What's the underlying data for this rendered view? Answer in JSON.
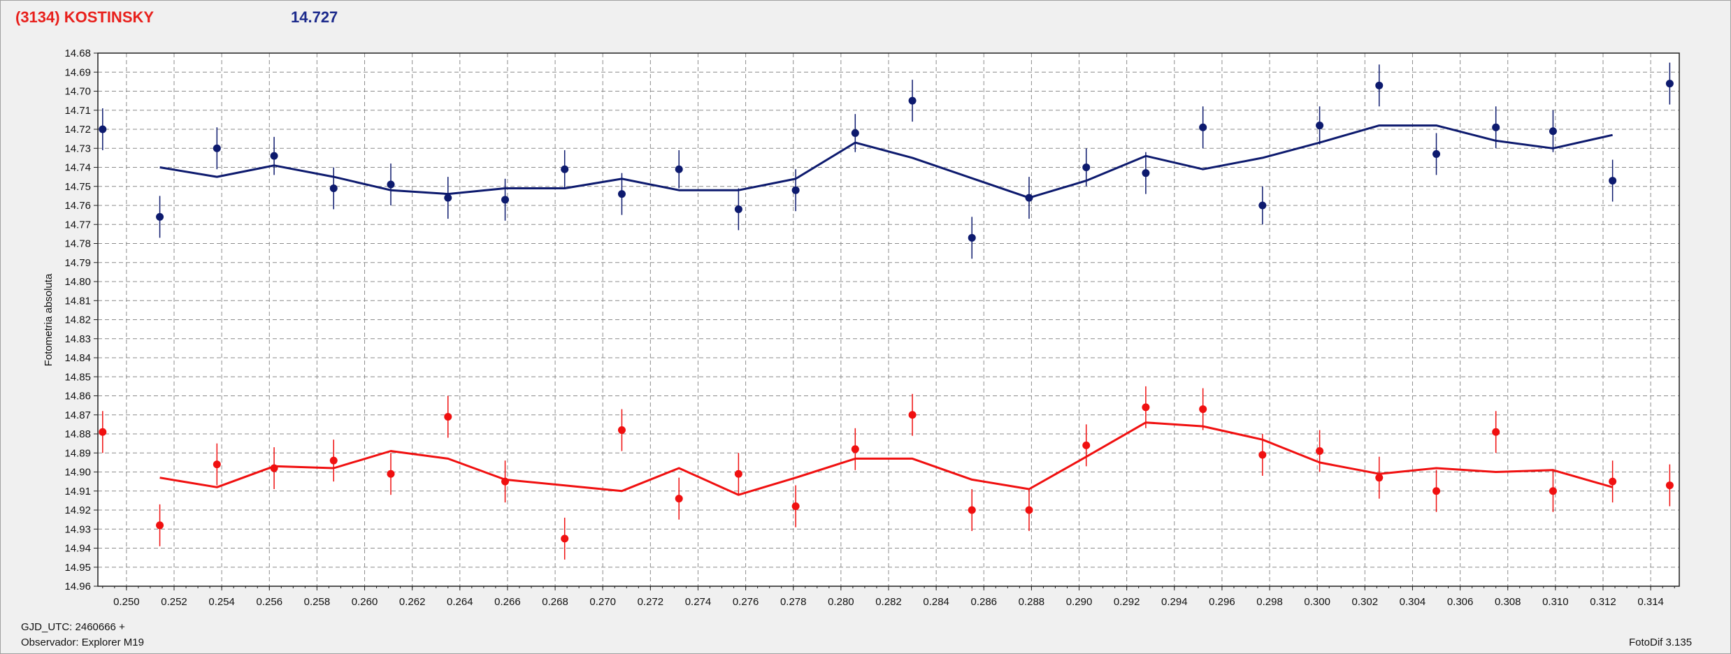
{
  "header": {
    "object_name": "(3134) KOSTINSKY",
    "magnitude": "14.727"
  },
  "footer": {
    "gjd": "GJD_UTC: 2460666 +",
    "observer": "Observador: Explorer M19",
    "software": "FotoDif 3.135"
  },
  "colors": {
    "blue_series": "#0d1a6e",
    "red_series": "#f01010",
    "grid": "#8c8c8c",
    "plot_bg": "#ffffff"
  },
  "chart_data": {
    "type": "scatter",
    "ylabel": "Fotometria absoluta",
    "xlabel": "",
    "xlim": [
      0.2488,
      0.3152
    ],
    "ylim": [
      14.68,
      14.96
    ],
    "y_inverted": true,
    "x_ticks": [
      0.25,
      0.252,
      0.254,
      0.256,
      0.258,
      0.26,
      0.262,
      0.264,
      0.266,
      0.268,
      0.27,
      0.272,
      0.274,
      0.276,
      0.278,
      0.28,
      0.282,
      0.284,
      0.286,
      0.288,
      0.29,
      0.292,
      0.294,
      0.296,
      0.298,
      0.3,
      0.302,
      0.304,
      0.306,
      0.308,
      0.31,
      0.312,
      0.314
    ],
    "y_ticks": [
      14.68,
      14.69,
      14.7,
      14.71,
      14.72,
      14.73,
      14.74,
      14.75,
      14.76,
      14.77,
      14.78,
      14.79,
      14.8,
      14.81,
      14.82,
      14.83,
      14.84,
      14.85,
      14.86,
      14.87,
      14.88,
      14.89,
      14.9,
      14.91,
      14.92,
      14.93,
      14.94,
      14.95,
      14.96
    ],
    "grid": true,
    "series": [
      {
        "color": "#0d1a6e",
        "points": [
          {
            "x": 0.249,
            "y": 14.72,
            "err": 0.011
          },
          {
            "x": 0.2514,
            "y": 14.766,
            "err": 0.011
          },
          {
            "x": 0.2538,
            "y": 14.73,
            "err": 0.011
          },
          {
            "x": 0.2562,
            "y": 14.734,
            "err": 0.01
          },
          {
            "x": 0.2587,
            "y": 14.751,
            "err": 0.011
          },
          {
            "x": 0.2611,
            "y": 14.749,
            "err": 0.011
          },
          {
            "x": 0.2635,
            "y": 14.756,
            "err": 0.011
          },
          {
            "x": 0.2659,
            "y": 14.757,
            "err": 0.011
          },
          {
            "x": 0.2684,
            "y": 14.741,
            "err": 0.01
          },
          {
            "x": 0.2708,
            "y": 14.754,
            "err": 0.011
          },
          {
            "x": 0.2732,
            "y": 14.741,
            "err": 0.01
          },
          {
            "x": 0.2757,
            "y": 14.762,
            "err": 0.011
          },
          {
            "x": 0.2781,
            "y": 14.752,
            "err": 0.011
          },
          {
            "x": 0.2806,
            "y": 14.722,
            "err": 0.01
          },
          {
            "x": 0.283,
            "y": 14.705,
            "err": 0.011
          },
          {
            "x": 0.2855,
            "y": 14.777,
            "err": 0.011
          },
          {
            "x": 0.2879,
            "y": 14.756,
            "err": 0.011
          },
          {
            "x": 0.2903,
            "y": 14.74,
            "err": 0.01
          },
          {
            "x": 0.2928,
            "y": 14.743,
            "err": 0.011
          },
          {
            "x": 0.2952,
            "y": 14.719,
            "err": 0.011
          },
          {
            "x": 0.2977,
            "y": 14.76,
            "err": 0.01
          },
          {
            "x": 0.3001,
            "y": 14.718,
            "err": 0.01
          },
          {
            "x": 0.3026,
            "y": 14.697,
            "err": 0.011
          },
          {
            "x": 0.305,
            "y": 14.733,
            "err": 0.011
          },
          {
            "x": 0.3075,
            "y": 14.719,
            "err": 0.011
          },
          {
            "x": 0.3099,
            "y": 14.721,
            "err": 0.011
          },
          {
            "x": 0.3124,
            "y": 14.747,
            "err": 0.011
          },
          {
            "x": 0.3148,
            "y": 14.696,
            "err": 0.011
          }
        ],
        "fit": [
          {
            "x": 0.2514,
            "y": 14.74
          },
          {
            "x": 0.2538,
            "y": 14.745
          },
          {
            "x": 0.2562,
            "y": 14.739
          },
          {
            "x": 0.2587,
            "y": 14.745
          },
          {
            "x": 0.2611,
            "y": 14.752
          },
          {
            "x": 0.2635,
            "y": 14.754
          },
          {
            "x": 0.2659,
            "y": 14.751
          },
          {
            "x": 0.2684,
            "y": 14.751
          },
          {
            "x": 0.2708,
            "y": 14.746
          },
          {
            "x": 0.2732,
            "y": 14.752
          },
          {
            "x": 0.2757,
            "y": 14.752
          },
          {
            "x": 0.2781,
            "y": 14.746
          },
          {
            "x": 0.2806,
            "y": 14.727
          },
          {
            "x": 0.283,
            "y": 14.735
          },
          {
            "x": 0.2879,
            "y": 14.756
          },
          {
            "x": 0.2903,
            "y": 14.747
          },
          {
            "x": 0.2928,
            "y": 14.734
          },
          {
            "x": 0.2952,
            "y": 14.741
          },
          {
            "x": 0.2977,
            "y": 14.735
          },
          {
            "x": 0.3001,
            "y": 14.727
          },
          {
            "x": 0.3026,
            "y": 14.718
          },
          {
            "x": 0.305,
            "y": 14.718
          },
          {
            "x": 0.3075,
            "y": 14.726
          },
          {
            "x": 0.3099,
            "y": 14.73
          },
          {
            "x": 0.3124,
            "y": 14.723
          }
        ]
      },
      {
        "color": "#f01010",
        "points": [
          {
            "x": 0.249,
            "y": 14.879,
            "err": 0.011
          },
          {
            "x": 0.2514,
            "y": 14.928,
            "err": 0.011
          },
          {
            "x": 0.2538,
            "y": 14.896,
            "err": 0.011
          },
          {
            "x": 0.2562,
            "y": 14.898,
            "err": 0.011
          },
          {
            "x": 0.2587,
            "y": 14.894,
            "err": 0.011
          },
          {
            "x": 0.2611,
            "y": 14.901,
            "err": 0.011
          },
          {
            "x": 0.2635,
            "y": 14.871,
            "err": 0.011
          },
          {
            "x": 0.2659,
            "y": 14.905,
            "err": 0.011
          },
          {
            "x": 0.2684,
            "y": 14.935,
            "err": 0.011
          },
          {
            "x": 0.2708,
            "y": 14.878,
            "err": 0.011
          },
          {
            "x": 0.2732,
            "y": 14.914,
            "err": 0.011
          },
          {
            "x": 0.2757,
            "y": 14.901,
            "err": 0.011
          },
          {
            "x": 0.2781,
            "y": 14.918,
            "err": 0.011
          },
          {
            "x": 0.2806,
            "y": 14.888,
            "err": 0.011
          },
          {
            "x": 0.283,
            "y": 14.87,
            "err": 0.011
          },
          {
            "x": 0.2855,
            "y": 14.92,
            "err": 0.011
          },
          {
            "x": 0.2879,
            "y": 14.92,
            "err": 0.011
          },
          {
            "x": 0.2903,
            "y": 14.886,
            "err": 0.011
          },
          {
            "x": 0.2928,
            "y": 14.866,
            "err": 0.011
          },
          {
            "x": 0.2952,
            "y": 14.867,
            "err": 0.011
          },
          {
            "x": 0.2977,
            "y": 14.891,
            "err": 0.011
          },
          {
            "x": 0.3001,
            "y": 14.889,
            "err": 0.011
          },
          {
            "x": 0.3026,
            "y": 14.903,
            "err": 0.011
          },
          {
            "x": 0.305,
            "y": 14.91,
            "err": 0.011
          },
          {
            "x": 0.3075,
            "y": 14.879,
            "err": 0.011
          },
          {
            "x": 0.3099,
            "y": 14.91,
            "err": 0.011
          },
          {
            "x": 0.3124,
            "y": 14.905,
            "err": 0.011
          },
          {
            "x": 0.3148,
            "y": 14.907,
            "err": 0.011
          }
        ],
        "fit": [
          {
            "x": 0.2514,
            "y": 14.903
          },
          {
            "x": 0.2538,
            "y": 14.908
          },
          {
            "x": 0.2562,
            "y": 14.897
          },
          {
            "x": 0.2587,
            "y": 14.898
          },
          {
            "x": 0.2611,
            "y": 14.889
          },
          {
            "x": 0.2635,
            "y": 14.893
          },
          {
            "x": 0.2659,
            "y": 14.904
          },
          {
            "x": 0.2708,
            "y": 14.91
          },
          {
            "x": 0.2732,
            "y": 14.898
          },
          {
            "x": 0.2757,
            "y": 14.912
          },
          {
            "x": 0.2781,
            "y": 14.903
          },
          {
            "x": 0.2806,
            "y": 14.893
          },
          {
            "x": 0.283,
            "y": 14.893
          },
          {
            "x": 0.2855,
            "y": 14.904
          },
          {
            "x": 0.2879,
            "y": 14.909
          },
          {
            "x": 0.2903,
            "y": 14.892
          },
          {
            "x": 0.2928,
            "y": 14.874
          },
          {
            "x": 0.2952,
            "y": 14.876
          },
          {
            "x": 0.2977,
            "y": 14.883
          },
          {
            "x": 0.3001,
            "y": 14.895
          },
          {
            "x": 0.3026,
            "y": 14.901
          },
          {
            "x": 0.305,
            "y": 14.898
          },
          {
            "x": 0.3075,
            "y": 14.9
          },
          {
            "x": 0.3099,
            "y": 14.899
          },
          {
            "x": 0.3124,
            "y": 14.908
          }
        ]
      }
    ]
  }
}
